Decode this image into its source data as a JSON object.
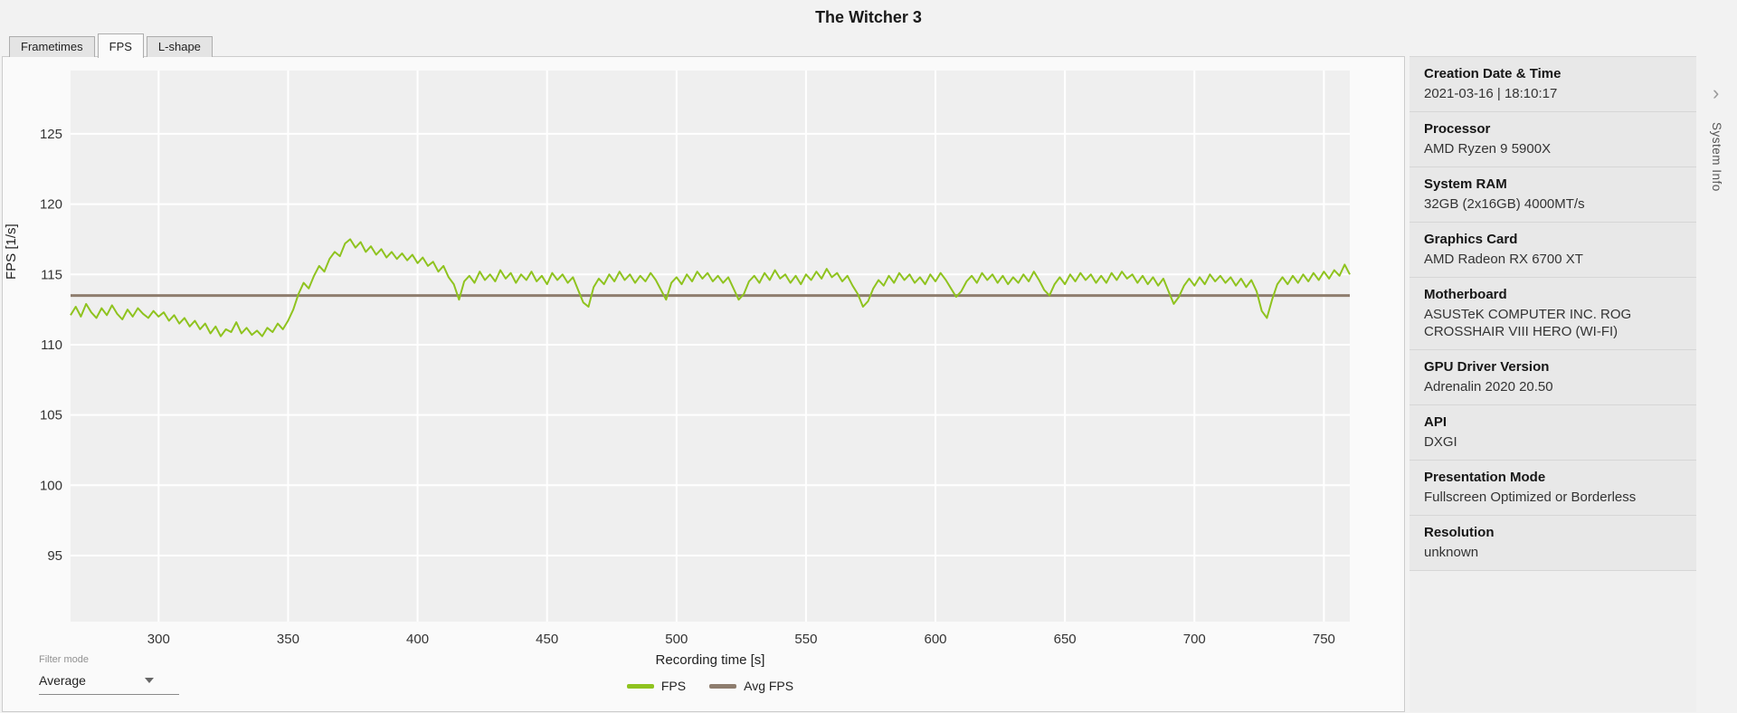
{
  "header": {
    "title": "The Witcher 3"
  },
  "tabs": [
    {
      "label": "Frametimes",
      "active": false
    },
    {
      "label": "FPS",
      "active": true
    },
    {
      "label": "L-shape",
      "active": false
    }
  ],
  "filter": {
    "label": "Filter mode",
    "value": "Average"
  },
  "sidebar": {
    "title": "System Info",
    "collapse_icon": "›",
    "entries": [
      {
        "label": "Creation Date & Time",
        "value": "2021-03-16  |  18:10:17"
      },
      {
        "label": "Processor",
        "value": "AMD Ryzen 9 5900X"
      },
      {
        "label": "System RAM",
        "value": "32GB (2x16GB) 4000MT/s"
      },
      {
        "label": "Graphics Card",
        "value": "AMD Radeon RX 6700 XT"
      },
      {
        "label": "Motherboard",
        "value": "ASUSTeK COMPUTER INC. ROG CROSSHAIR VIII HERO (WI-FI)"
      },
      {
        "label": "GPU Driver Version",
        "value": "Adrenalin 2020 20.50"
      },
      {
        "label": "API",
        "value": "DXGI"
      },
      {
        "label": "Presentation Mode",
        "value": "Fullscreen Optimized or Borderless"
      },
      {
        "label": "Resolution",
        "value": "unknown"
      }
    ]
  },
  "chart_data": {
    "type": "line",
    "title": "The Witcher 3",
    "xlabel": "Recording time [s]",
    "ylabel": "FPS [1/s]",
    "xlim": [
      266,
      760
    ],
    "ylim": [
      90.3,
      129.5
    ],
    "x_ticks": [
      300,
      350,
      400,
      450,
      500,
      550,
      600,
      650,
      700,
      750
    ],
    "y_ticks": [
      95,
      100,
      105,
      110,
      115,
      120,
      125
    ],
    "grid": true,
    "plot_bg": "#efefef",
    "grid_color": "#ffffff",
    "legend_position": "bottom",
    "series": [
      {
        "name": "FPS",
        "color": "#8fc31f",
        "x_start": 266,
        "x_step": 2,
        "values": [
          112.1,
          112.7,
          112.0,
          112.9,
          112.3,
          111.9,
          112.6,
          112.1,
          112.8,
          112.2,
          111.8,
          112.5,
          112.0,
          112.6,
          112.2,
          111.9,
          112.4,
          112.0,
          112.3,
          111.7,
          112.1,
          111.5,
          111.9,
          111.3,
          111.7,
          111.1,
          111.5,
          110.8,
          111.3,
          110.6,
          111.1,
          110.9,
          111.6,
          110.8,
          111.2,
          110.7,
          111.0,
          110.6,
          111.2,
          110.9,
          111.5,
          111.1,
          111.7,
          112.5,
          113.6,
          114.4,
          114.0,
          114.9,
          115.6,
          115.2,
          116.1,
          116.6,
          116.3,
          117.2,
          117.5,
          116.9,
          117.3,
          116.6,
          117.0,
          116.4,
          116.8,
          116.2,
          116.6,
          116.1,
          116.5,
          116.0,
          116.4,
          115.8,
          116.2,
          115.6,
          115.9,
          115.2,
          115.6,
          114.8,
          114.3,
          113.2,
          114.5,
          114.9,
          114.4,
          115.2,
          114.6,
          115.0,
          114.5,
          115.3,
          114.7,
          115.1,
          114.4,
          115.0,
          114.6,
          115.2,
          114.5,
          114.9,
          114.3,
          115.1,
          114.6,
          115.0,
          114.4,
          114.8,
          113.9,
          113.0,
          112.7,
          114.1,
          114.7,
          114.3,
          115.0,
          114.5,
          115.2,
          114.6,
          115.0,
          114.4,
          114.9,
          114.5,
          115.1,
          114.6,
          113.9,
          113.2,
          114.4,
          114.8,
          114.3,
          115.0,
          114.5,
          115.2,
          114.7,
          115.1,
          114.5,
          114.9,
          114.4,
          114.8,
          114.0,
          113.2,
          113.6,
          114.5,
          114.9,
          114.4,
          115.1,
          114.6,
          115.3,
          114.7,
          115.0,
          114.4,
          114.9,
          114.3,
          115.0,
          114.6,
          115.2,
          114.7,
          115.4,
          114.8,
          115.1,
          114.5,
          114.9,
          114.2,
          113.6,
          112.7,
          113.1,
          114.0,
          114.6,
          114.2,
          114.9,
          114.4,
          115.1,
          114.6,
          115.0,
          114.4,
          114.8,
          114.3,
          115.0,
          114.5,
          115.1,
          114.6,
          114.0,
          113.4,
          113.8,
          114.5,
          114.9,
          114.4,
          115.1,
          114.6,
          115.0,
          114.4,
          114.9,
          114.3,
          114.8,
          114.4,
          115.0,
          114.5,
          115.2,
          114.6,
          113.9,
          113.5,
          114.3,
          114.8,
          114.3,
          115.0,
          114.5,
          115.1,
          114.6,
          115.0,
          114.4,
          114.9,
          114.4,
          115.1,
          114.6,
          115.2,
          114.7,
          115.0,
          114.4,
          114.9,
          114.3,
          114.8,
          114.2,
          114.7,
          113.8,
          112.9,
          113.4,
          114.2,
          114.7,
          114.2,
          114.8,
          114.3,
          115.0,
          114.5,
          114.9,
          114.4,
          114.8,
          114.2,
          114.7,
          114.1,
          114.6,
          113.8,
          112.4,
          111.9,
          113.2,
          114.3,
          114.8,
          114.3,
          114.9,
          114.4,
          115.0,
          114.5,
          115.1,
          114.6,
          115.2,
          114.7,
          115.3,
          114.9,
          115.7,
          115.0
        ]
      },
      {
        "name": "Avg FPS",
        "color": "#8e7d6e",
        "type": "constant",
        "value": 113.5
      }
    ]
  }
}
